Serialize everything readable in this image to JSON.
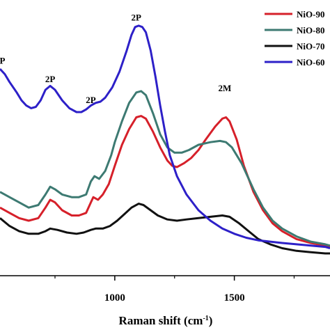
{
  "chart_data": {
    "type": "line",
    "xlabel": "Raman shift (cm",
    "xlabel_sup": "-1",
    "xlabel_close": ")",
    "xlim": [
      520,
      1900
    ],
    "ylim": [
      0,
      1
    ],
    "x_ticks": [
      {
        "value": 1000,
        "label": "1000"
      },
      {
        "value": 1500,
        "label": "1500"
      }
    ],
    "legend_position": "top-right",
    "peak_labels": [
      {
        "text": "P",
        "x": 530,
        "y": 0.81
      },
      {
        "text": "2P",
        "x": 730,
        "y": 0.74
      },
      {
        "text": "2P",
        "x": 900,
        "y": 0.66
      },
      {
        "text": "2P",
        "x": 1090,
        "y": 0.975
      },
      {
        "text": "2M",
        "x": 1460,
        "y": 0.705
      }
    ],
    "series": [
      {
        "name": "NiO-90",
        "color": "#d6202a",
        "points": [
          [
            520,
            0.26
          ],
          [
            560,
            0.24
          ],
          [
            600,
            0.22
          ],
          [
            640,
            0.21
          ],
          [
            680,
            0.22
          ],
          [
            710,
            0.26
          ],
          [
            730,
            0.29
          ],
          [
            750,
            0.28
          ],
          [
            780,
            0.25
          ],
          [
            820,
            0.23
          ],
          [
            850,
            0.23
          ],
          [
            880,
            0.24
          ],
          [
            900,
            0.28
          ],
          [
            910,
            0.3
          ],
          [
            930,
            0.29
          ],
          [
            950,
            0.31
          ],
          [
            975,
            0.35
          ],
          [
            1000,
            0.42
          ],
          [
            1030,
            0.5
          ],
          [
            1060,
            0.56
          ],
          [
            1090,
            0.605
          ],
          [
            1110,
            0.61
          ],
          [
            1130,
            0.6
          ],
          [
            1160,
            0.55
          ],
          [
            1190,
            0.49
          ],
          [
            1220,
            0.44
          ],
          [
            1240,
            0.42
          ],
          [
            1260,
            0.415
          ],
          [
            1290,
            0.43
          ],
          [
            1320,
            0.45
          ],
          [
            1350,
            0.48
          ],
          [
            1380,
            0.52
          ],
          [
            1420,
            0.57
          ],
          [
            1450,
            0.6
          ],
          [
            1465,
            0.605
          ],
          [
            1480,
            0.59
          ],
          [
            1510,
            0.52
          ],
          [
            1540,
            0.42
          ],
          [
            1580,
            0.32
          ],
          [
            1620,
            0.25
          ],
          [
            1660,
            0.2
          ],
          [
            1700,
            0.17
          ],
          [
            1760,
            0.14
          ],
          [
            1820,
            0.125
          ],
          [
            1880,
            0.115
          ],
          [
            1900,
            0.11
          ]
        ]
      },
      {
        "name": "NiO-80",
        "color": "#3d7a72",
        "points": [
          [
            520,
            0.32
          ],
          [
            560,
            0.3
          ],
          [
            600,
            0.28
          ],
          [
            640,
            0.26
          ],
          [
            680,
            0.27
          ],
          [
            710,
            0.31
          ],
          [
            730,
            0.34
          ],
          [
            750,
            0.33
          ],
          [
            780,
            0.31
          ],
          [
            820,
            0.3
          ],
          [
            850,
            0.3
          ],
          [
            880,
            0.31
          ],
          [
            900,
            0.36
          ],
          [
            915,
            0.38
          ],
          [
            935,
            0.37
          ],
          [
            960,
            0.4
          ],
          [
            985,
            0.46
          ],
          [
            1000,
            0.51
          ],
          [
            1030,
            0.59
          ],
          [
            1060,
            0.66
          ],
          [
            1090,
            0.7
          ],
          [
            1110,
            0.705
          ],
          [
            1130,
            0.69
          ],
          [
            1160,
            0.62
          ],
          [
            1190,
            0.54
          ],
          [
            1220,
            0.49
          ],
          [
            1250,
            0.47
          ],
          [
            1280,
            0.47
          ],
          [
            1310,
            0.48
          ],
          [
            1350,
            0.5
          ],
          [
            1400,
            0.51
          ],
          [
            1440,
            0.515
          ],
          [
            1465,
            0.51
          ],
          [
            1490,
            0.49
          ],
          [
            1530,
            0.43
          ],
          [
            1580,
            0.33
          ],
          [
            1620,
            0.26
          ],
          [
            1660,
            0.21
          ],
          [
            1700,
            0.18
          ],
          [
            1760,
            0.15
          ],
          [
            1820,
            0.13
          ],
          [
            1880,
            0.12
          ],
          [
            1900,
            0.115
          ]
        ]
      },
      {
        "name": "NiO-70",
        "color": "#111111",
        "points": [
          [
            520,
            0.22
          ],
          [
            560,
            0.19
          ],
          [
            600,
            0.17
          ],
          [
            640,
            0.16
          ],
          [
            680,
            0.16
          ],
          [
            710,
            0.17
          ],
          [
            730,
            0.18
          ],
          [
            760,
            0.175
          ],
          [
            800,
            0.165
          ],
          [
            840,
            0.16
          ],
          [
            870,
            0.165
          ],
          [
            900,
            0.175
          ],
          [
            920,
            0.18
          ],
          [
            950,
            0.18
          ],
          [
            980,
            0.19
          ],
          [
            1010,
            0.21
          ],
          [
            1040,
            0.235
          ],
          [
            1070,
            0.26
          ],
          [
            1100,
            0.275
          ],
          [
            1120,
            0.27
          ],
          [
            1150,
            0.25
          ],
          [
            1180,
            0.23
          ],
          [
            1220,
            0.215
          ],
          [
            1260,
            0.21
          ],
          [
            1300,
            0.215
          ],
          [
            1350,
            0.22
          ],
          [
            1400,
            0.225
          ],
          [
            1450,
            0.23
          ],
          [
            1480,
            0.225
          ],
          [
            1520,
            0.2
          ],
          [
            1560,
            0.17
          ],
          [
            1600,
            0.14
          ],
          [
            1650,
            0.12
          ],
          [
            1700,
            0.105
          ],
          [
            1760,
            0.095
          ],
          [
            1820,
            0.09
          ],
          [
            1880,
            0.085
          ],
          [
            1900,
            0.085
          ]
        ]
      },
      {
        "name": "NiO-60",
        "color": "#2d20c8",
        "points": [
          [
            520,
            0.79
          ],
          [
            540,
            0.77
          ],
          [
            560,
            0.74
          ],
          [
            590,
            0.7
          ],
          [
            610,
            0.67
          ],
          [
            630,
            0.65
          ],
          [
            650,
            0.64
          ],
          [
            670,
            0.645
          ],
          [
            690,
            0.67
          ],
          [
            710,
            0.71
          ],
          [
            730,
            0.725
          ],
          [
            750,
            0.71
          ],
          [
            780,
            0.67
          ],
          [
            810,
            0.64
          ],
          [
            840,
            0.625
          ],
          [
            860,
            0.625
          ],
          [
            880,
            0.635
          ],
          [
            900,
            0.65
          ],
          [
            920,
            0.66
          ],
          [
            940,
            0.665
          ],
          [
            960,
            0.68
          ],
          [
            990,
            0.72
          ],
          [
            1020,
            0.78
          ],
          [
            1050,
            0.86
          ],
          [
            1070,
            0.92
          ],
          [
            1085,
            0.95
          ],
          [
            1100,
            0.955
          ],
          [
            1115,
            0.95
          ],
          [
            1130,
            0.93
          ],
          [
            1150,
            0.86
          ],
          [
            1170,
            0.76
          ],
          [
            1190,
            0.65
          ],
          [
            1210,
            0.55
          ],
          [
            1230,
            0.46
          ],
          [
            1260,
            0.38
          ],
          [
            1300,
            0.31
          ],
          [
            1350,
            0.25
          ],
          [
            1400,
            0.21
          ],
          [
            1450,
            0.18
          ],
          [
            1500,
            0.16
          ],
          [
            1550,
            0.145
          ],
          [
            1600,
            0.135
          ],
          [
            1650,
            0.13
          ],
          [
            1700,
            0.125
          ],
          [
            1760,
            0.12
          ],
          [
            1820,
            0.115
          ],
          [
            1880,
            0.11
          ],
          [
            1900,
            0.105
          ]
        ]
      }
    ]
  }
}
